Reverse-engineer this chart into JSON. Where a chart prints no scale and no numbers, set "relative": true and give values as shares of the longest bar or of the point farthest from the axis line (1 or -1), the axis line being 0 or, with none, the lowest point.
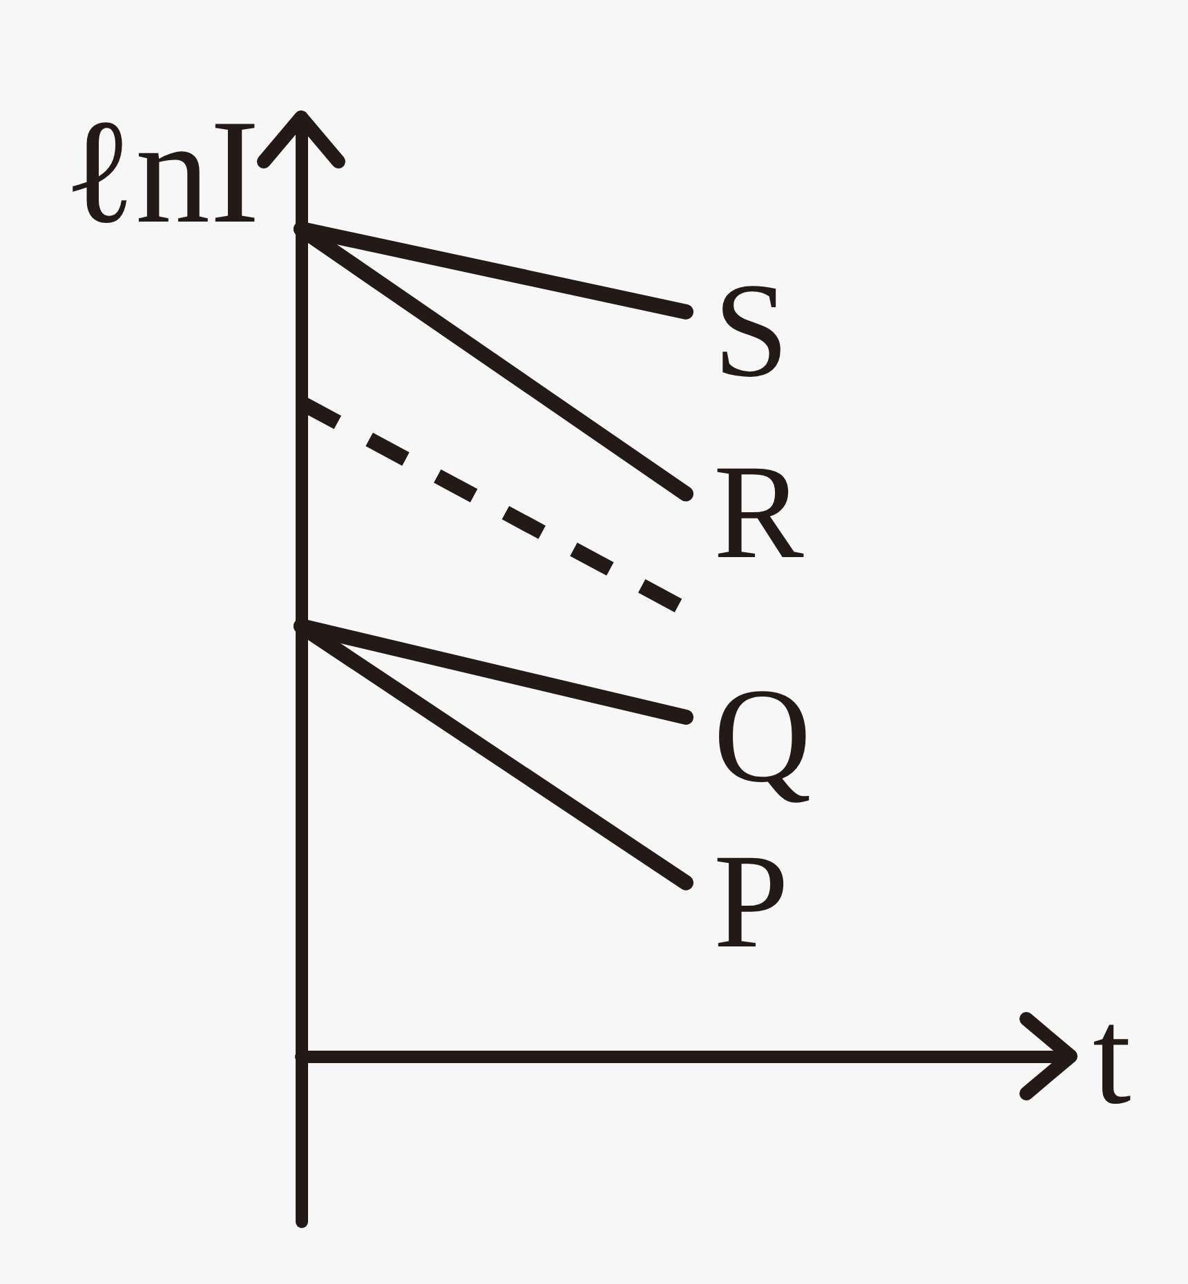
{
  "chart_data": {
    "type": "line",
    "relative": true,
    "xlabel": "t",
    "ylabel": "ℓnI",
    "categories": [
      null,
      null,
      null
    ],
    "series": [
      {
        "name": "S",
        "color": "#231a18",
        "values": [
          1,
          0.9,
          null
        ]
      },
      {
        "name": "R",
        "color": "#231a18",
        "values": [
          1,
          0.68,
          null
        ]
      },
      {
        "color": "#231a18",
        "line_style": "dashed",
        "values": [
          0.79,
          0.54,
          null
        ]
      },
      {
        "name": "Q",
        "color": "#231a18",
        "values": [
          0.52,
          0.41,
          null
        ]
      },
      {
        "name": "P",
        "color": "#231a18",
        "values": [
          0.52,
          0.21,
          null
        ]
      }
    ],
    "marker": "none",
    "line_style": "solid",
    "grid": false,
    "legend": false
  }
}
